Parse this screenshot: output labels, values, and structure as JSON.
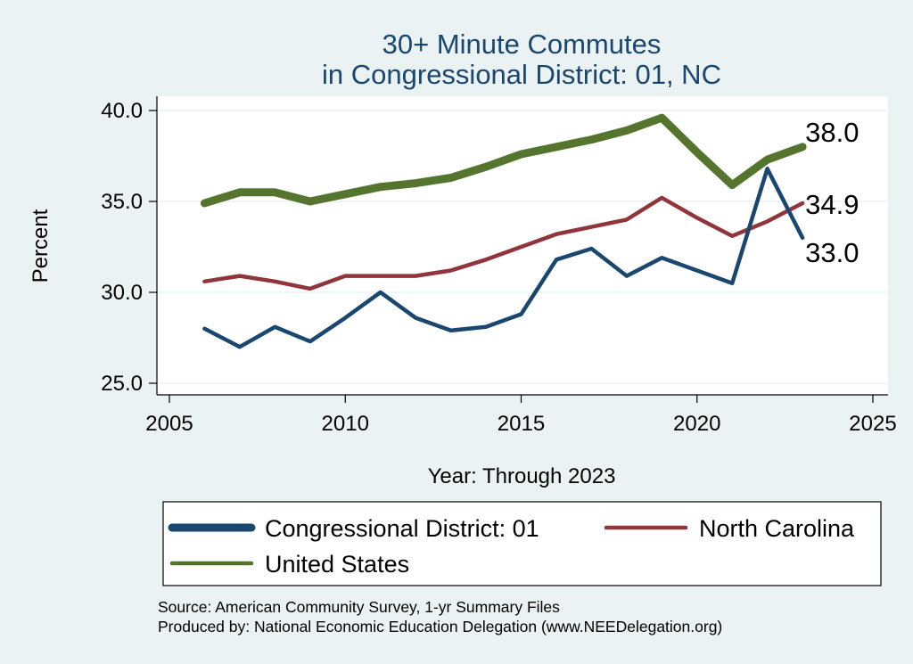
{
  "chart_data": {
    "type": "line",
    "title": [
      "30+ Minute Commutes",
      "in Congressional District:  01, NC"
    ],
    "xlabel": "Year: Through 2023",
    "ylabel": "Percent",
    "xlim": [
      2005,
      2025
    ],
    "ylim": [
      25,
      40
    ],
    "xticks": [
      2005,
      2010,
      2015,
      2020,
      2025
    ],
    "yticks": [
      25,
      30,
      35,
      40
    ],
    "ytick_labels": [
      "25.0",
      "30.0",
      "35.0",
      "40.0"
    ],
    "grid": true,
    "x": [
      2006,
      2007,
      2008,
      2009,
      2010,
      2011,
      2012,
      2013,
      2014,
      2015,
      2016,
      2017,
      2018,
      2019,
      2020,
      2021,
      2022,
      2023
    ],
    "series": [
      {
        "name": "Congressional District:  01",
        "color": "#1a476f",
        "values": [
          28.0,
          27.0,
          28.1,
          27.3,
          28.6,
          30.0,
          28.6,
          27.9,
          28.1,
          28.8,
          31.8,
          32.4,
          30.9,
          31.9,
          31.2,
          30.5,
          36.8,
          33.0
        ],
        "end_label": "33.0"
      },
      {
        "name": "North Carolina",
        "color": "#90353b",
        "values": [
          30.6,
          30.9,
          30.6,
          30.2,
          30.9,
          30.9,
          30.9,
          31.2,
          31.8,
          32.5,
          33.2,
          33.6,
          34.0,
          35.2,
          34.1,
          33.1,
          33.9,
          34.9
        ],
        "end_label": "34.9"
      },
      {
        "name": "United States",
        "color": "#55752f",
        "values": [
          34.9,
          35.5,
          35.5,
          35.0,
          35.4,
          35.8,
          36.0,
          36.3,
          36.9,
          37.6,
          38.0,
          38.4,
          38.9,
          39.6,
          37.7,
          35.9,
          37.3,
          38.0
        ],
        "end_label": "38.0"
      }
    ],
    "legend": [
      "Congressional District:  01",
      "North Carolina",
      "United States"
    ],
    "notes": [
      "Source: American Community Survey, 1-yr Summary Files",
      "Produced by: National Economic Education Delegation (www.NEEDelegation.org)"
    ]
  }
}
